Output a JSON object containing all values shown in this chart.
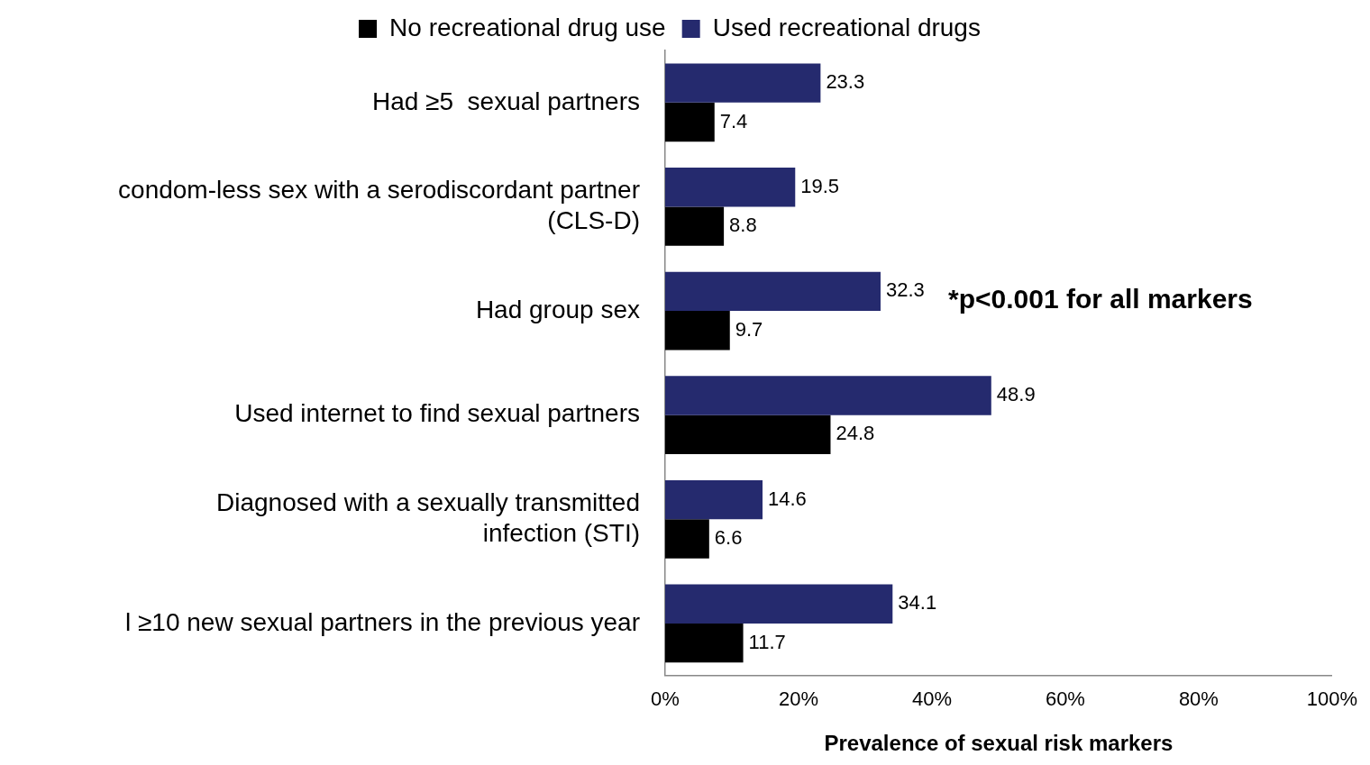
{
  "chart_data": {
    "type": "bar",
    "orientation": "horizontal",
    "xlabel": "Prevalence of sexual risk markers",
    "categories": [
      "Had ≥5  sexual partners",
      "condom-less sex with a serodiscordant partner (CLS-D)",
      "Had group sex",
      "Used internet to find sexual partners",
      "Diagnosed with a sexually transmitted infection (STI)",
      "l ≥10 new sexual partners in the previous year"
    ],
    "series": [
      {
        "name": "Used recreational drugs",
        "color": "#252a6e",
        "values": [
          23.3,
          19.5,
          32.3,
          48.9,
          14.6,
          34.1
        ]
      },
      {
        "name": "No recreational drug use",
        "color": "#000000",
        "values": [
          7.4,
          8.8,
          9.7,
          24.8,
          6.6,
          11.7
        ]
      }
    ],
    "xlim": [
      0,
      100
    ],
    "xticks": [
      {
        "value": 0,
        "label": "0%"
      },
      {
        "value": 20,
        "label": "20%"
      },
      {
        "value": 40,
        "label": "40%"
      },
      {
        "value": 60,
        "label": "60%"
      },
      {
        "value": 80,
        "label": "80%"
      },
      {
        "value": 100,
        "label": "100%"
      }
    ],
    "grid": false,
    "legend": "top",
    "data_labels": true,
    "annotations": [
      "*p<0.001 for all markers"
    ]
  }
}
